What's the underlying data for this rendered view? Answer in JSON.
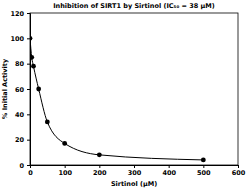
{
  "chart_data": {
    "type": "line",
    "title": "Inhibition of SIRT1 by Sirtinol (IC₅₀ = 38 µM)",
    "x_label": "Sirtinol (µM)",
    "y_label": "% Initial Activity",
    "x": [
      0,
      5,
      10,
      25,
      50,
      100,
      200,
      500
    ],
    "values": [
      100,
      85,
      78,
      60,
      34,
      17,
      8,
      4
    ],
    "color": "#000000",
    "marker": "circle",
    "line_style": "solid",
    "xlim": [
      0,
      600
    ],
    "xticks": [
      0,
      100,
      200,
      300,
      400,
      500,
      600
    ],
    "ylim": [
      0,
      120
    ],
    "yticks": [
      0,
      20,
      40,
      60,
      80,
      100,
      120
    ],
    "grid": false
  }
}
